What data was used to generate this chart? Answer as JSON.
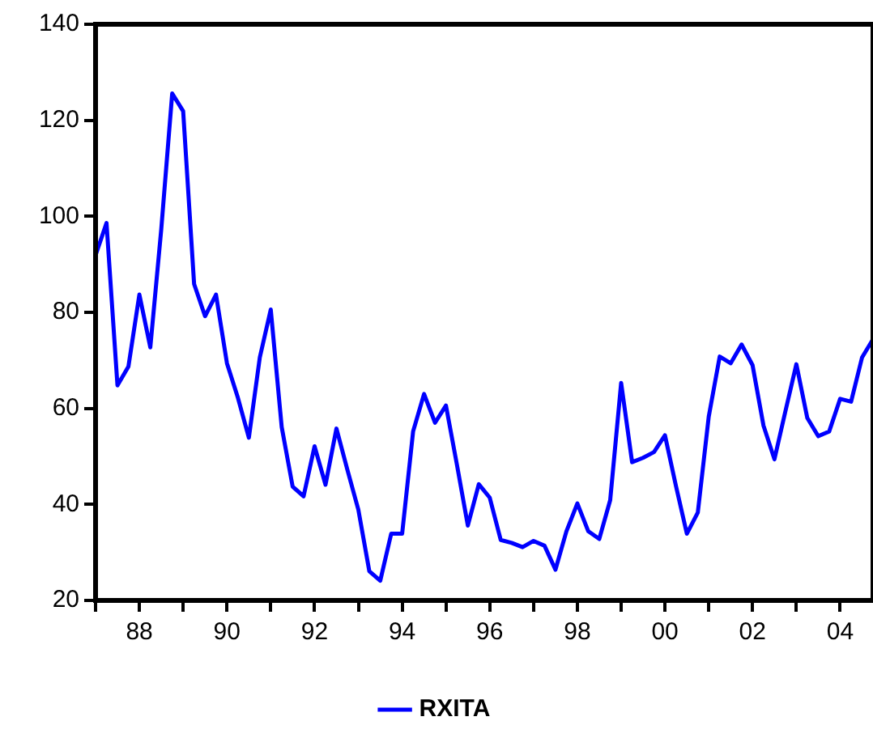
{
  "chart_data": {
    "type": "line",
    "x": [
      "1987-01",
      "1987-04",
      "1987-07",
      "1987-10",
      "1988-01",
      "1988-04",
      "1988-07",
      "1988-10",
      "1989-01",
      "1989-04",
      "1989-07",
      "1989-10",
      "1990-01",
      "1990-04",
      "1990-07",
      "1990-10",
      "1991-01",
      "1991-04",
      "1991-07",
      "1991-10",
      "1992-01",
      "1992-04",
      "1992-07",
      "1992-10",
      "1993-01",
      "1993-04",
      "1993-07",
      "1993-10",
      "1994-01",
      "1994-04",
      "1994-07",
      "1994-10",
      "1995-01",
      "1995-04",
      "1995-07",
      "1995-10",
      "1996-01",
      "1996-04",
      "1996-07",
      "1996-10",
      "1997-01",
      "1997-04",
      "1997-07",
      "1997-10",
      "1998-01",
      "1998-04",
      "1998-07",
      "1998-10",
      "1999-01",
      "1999-04",
      "1999-07",
      "1999-10",
      "2000-01",
      "2000-04",
      "2000-07",
      "2000-10",
      "2001-01",
      "2001-04",
      "2001-07",
      "2001-10",
      "2002-01",
      "2002-04",
      "2002-07",
      "2002-10",
      "2003-01",
      "2003-04",
      "2003-07",
      "2003-10",
      "2004-01",
      "2004-04",
      "2004-07",
      "2004-10"
    ],
    "series": [
      {
        "name": "RXITA",
        "color": "#0000ff",
        "values": [
          91.9,
          98.6,
          64.8,
          68.7,
          83.7,
          72.7,
          97.3,
          125.6,
          121.9,
          85.9,
          79.2,
          83.7,
          69.4,
          62.2,
          53.9,
          70.6,
          80.6,
          56.1,
          43.7,
          41.7,
          52.1,
          44.1,
          55.8,
          47.2,
          38.9,
          26.1,
          24.1,
          33.9,
          33.9,
          55.2,
          63.0,
          57.0,
          60.6,
          48.3,
          35.6,
          44.2,
          41.4,
          32.6,
          32.0,
          31.1,
          32.4,
          31.4,
          26.4,
          34.4,
          40.2,
          34.4,
          32.8,
          40.9,
          65.3,
          48.8,
          49.7,
          50.9,
          54.4,
          43.9,
          33.9,
          38.3,
          58.3,
          70.8,
          69.4,
          73.3,
          69.0,
          56.4,
          49.4,
          59.4,
          69.2,
          58.0,
          54.2,
          55.2,
          62.0,
          61.4,
          70.6,
          74.4
        ]
      }
    ],
    "xlim": [
      "1987-01",
      "2004-10"
    ],
    "xticks": [
      {
        "value": "1987-01",
        "label": null
      },
      {
        "value": "1988-01",
        "label": "88"
      },
      {
        "value": "1989-01",
        "label": null
      },
      {
        "value": "1990-01",
        "label": "90"
      },
      {
        "value": "1991-01",
        "label": null
      },
      {
        "value": "1992-01",
        "label": "92"
      },
      {
        "value": "1993-01",
        "label": null
      },
      {
        "value": "1994-01",
        "label": "94"
      },
      {
        "value": "1995-01",
        "label": null
      },
      {
        "value": "1996-01",
        "label": "96"
      },
      {
        "value": "1997-01",
        "label": null
      },
      {
        "value": "1998-01",
        "label": "98"
      },
      {
        "value": "1999-01",
        "label": null
      },
      {
        "value": "2000-01",
        "label": "00"
      },
      {
        "value": "2001-01",
        "label": null
      },
      {
        "value": "2002-01",
        "label": "02"
      },
      {
        "value": "2003-01",
        "label": null
      },
      {
        "value": "2004-01",
        "label": "04"
      }
    ],
    "ylim": [
      20,
      140
    ],
    "yticks": [
      20,
      40,
      60,
      80,
      100,
      120,
      140
    ],
    "grid": false,
    "legend": "bottom",
    "marker": "none",
    "line_style": "solid"
  }
}
